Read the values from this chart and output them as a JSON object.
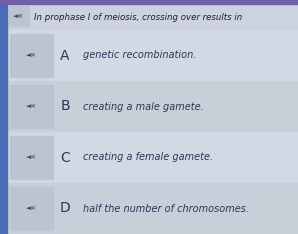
{
  "question": "In prophase I of meiosis, crossing over results in",
  "options": [
    {
      "label": "A",
      "text": "genetic recombination."
    },
    {
      "label": "B",
      "text": "creating a male gamete."
    },
    {
      "label": "C",
      "text": "creating a female gamete."
    },
    {
      "label": "D",
      "text": "half the number of chromosomes."
    }
  ],
  "bg_color": "#d8dde8",
  "top_bar_color": "#7060a8",
  "left_bar_color": "#4a6bb5",
  "question_bg": "#ccd2de",
  "question_text_color": "#222222",
  "icon_bg_color": "#bcc4d2",
  "row_bg_even": "#d2d8e4",
  "row_bg_odd": "#c8cfd8",
  "label_color": "#333355",
  "text_color": "#333355",
  "option_area_bg": "#d8dde8"
}
